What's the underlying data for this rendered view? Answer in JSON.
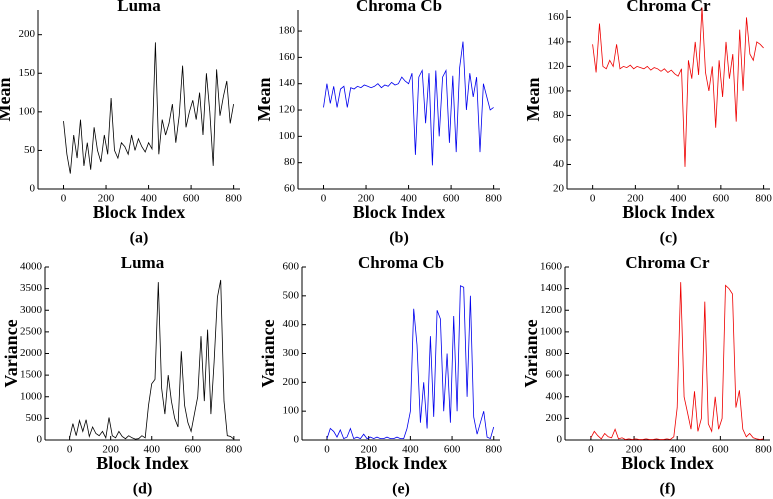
{
  "chart_data": [
    {
      "type": "line",
      "title": "Luma",
      "xlabel": "Block Index",
      "ylabel": "Mean",
      "caption": "(a)",
      "color": "#000000",
      "x": [
        0,
        16,
        32,
        48,
        64,
        80,
        96,
        112,
        128,
        144,
        160,
        176,
        192,
        208,
        224,
        240,
        256,
        272,
        288,
        304,
        320,
        336,
        352,
        368,
        384,
        400,
        416,
        432,
        448,
        464,
        480,
        496,
        512,
        528,
        544,
        560,
        576,
        592,
        608,
        624,
        640,
        656,
        672,
        688,
        704,
        720,
        736,
        752,
        768,
        784,
        800
      ],
      "values": [
        88,
        45,
        20,
        70,
        40,
        90,
        30,
        60,
        25,
        80,
        50,
        35,
        70,
        45,
        118,
        50,
        40,
        60,
        55,
        45,
        70,
        50,
        65,
        55,
        48,
        60,
        52,
        190,
        45,
        90,
        70,
        85,
        110,
        60,
        95,
        160,
        80,
        100,
        115,
        90,
        125,
        70,
        150,
        100,
        30,
        155,
        95,
        120,
        140,
        85,
        110
      ],
      "xlim": [
        -120,
        830
      ],
      "xticks": [
        0,
        200,
        400,
        600,
        800
      ],
      "ylim": [
        0,
        232
      ],
      "yticks": [
        0,
        50,
        100,
        150,
        200
      ]
    },
    {
      "type": "line",
      "title": "Chroma Cb",
      "xlabel": "Block Index",
      "ylabel": "Mean",
      "caption": "(b)",
      "color": "#0000ee",
      "x": [
        0,
        16,
        32,
        48,
        64,
        80,
        96,
        112,
        128,
        144,
        160,
        176,
        192,
        208,
        224,
        240,
        256,
        272,
        288,
        304,
        320,
        336,
        352,
        368,
        384,
        400,
        416,
        432,
        448,
        464,
        480,
        496,
        512,
        528,
        544,
        560,
        576,
        592,
        608,
        624,
        640,
        656,
        672,
        688,
        704,
        720,
        736,
        752,
        768,
        784,
        800
      ],
      "values": [
        122,
        140,
        125,
        138,
        122,
        136,
        138,
        122,
        137,
        136,
        138,
        137,
        139,
        138,
        137,
        138,
        140,
        137,
        139,
        138,
        141,
        139,
        140,
        145,
        142,
        140,
        148,
        86,
        145,
        150,
        110,
        148,
        78,
        150,
        100,
        145,
        150,
        95,
        146,
        88,
        152,
        172,
        120,
        148,
        130,
        145,
        88,
        140,
        130,
        120,
        122
      ],
      "xlim": [
        -120,
        830
      ],
      "xticks": [
        0,
        200,
        400,
        600,
        800
      ],
      "ylim": [
        60,
        196
      ],
      "yticks": [
        60,
        80,
        100,
        120,
        140,
        160,
        180
      ]
    },
    {
      "type": "line",
      "title": "Chroma Cr",
      "xlabel": "Block Index",
      "ylabel": "Mean",
      "caption": "(c)",
      "color": "#ee0000",
      "x": [
        0,
        16,
        32,
        48,
        64,
        80,
        96,
        112,
        128,
        144,
        160,
        176,
        192,
        208,
        224,
        240,
        256,
        272,
        288,
        304,
        320,
        336,
        352,
        368,
        384,
        400,
        416,
        432,
        448,
        464,
        480,
        496,
        512,
        528,
        544,
        560,
        576,
        592,
        608,
        624,
        640,
        656,
        672,
        688,
        704,
        720,
        736,
        752,
        768,
        784,
        800
      ],
      "values": [
        138,
        115,
        155,
        120,
        118,
        125,
        120,
        138,
        118,
        120,
        119,
        121,
        118,
        120,
        119,
        118,
        120,
        117,
        119,
        118,
        116,
        118,
        115,
        117,
        114,
        112,
        118,
        38,
        125,
        110,
        140,
        113,
        168,
        115,
        100,
        120,
        70,
        125,
        95,
        140,
        110,
        130,
        75,
        150,
        100,
        160,
        130,
        125,
        140,
        138,
        135
      ],
      "xlim": [
        -120,
        830
      ],
      "xticks": [
        0,
        200,
        400,
        600,
        800
      ],
      "ylim": [
        20,
        166
      ],
      "yticks": [
        20,
        40,
        60,
        80,
        100,
        120,
        140,
        160
      ]
    },
    {
      "type": "line",
      "title": "Luma",
      "xlabel": "Block Index",
      "ylabel": "Variance",
      "caption": "(d)",
      "color": "#000000",
      "x": [
        0,
        16,
        32,
        48,
        64,
        80,
        96,
        112,
        128,
        144,
        160,
        176,
        192,
        208,
        224,
        240,
        256,
        272,
        288,
        304,
        320,
        336,
        352,
        368,
        384,
        400,
        416,
        432,
        448,
        464,
        480,
        496,
        512,
        528,
        544,
        560,
        576,
        592,
        608,
        624,
        640,
        656,
        672,
        688,
        704,
        720,
        736,
        752,
        768,
        784,
        800
      ],
      "values": [
        50,
        380,
        100,
        450,
        200,
        470,
        80,
        300,
        150,
        100,
        200,
        50,
        520,
        100,
        50,
        200,
        80,
        30,
        100,
        50,
        20,
        30,
        100,
        50,
        800,
        1300,
        1400,
        3650,
        1200,
        600,
        1500,
        900,
        500,
        300,
        2050,
        800,
        400,
        200,
        600,
        1000,
        2400,
        900,
        2550,
        600,
        1800,
        3300,
        3700,
        900,
        100,
        80,
        20
      ],
      "xlim": [
        -120,
        830
      ],
      "xticks": [
        0,
        200,
        400,
        600,
        800
      ],
      "ylim": [
        0,
        4000
      ],
      "yticks": [
        0,
        500,
        1000,
        1500,
        2000,
        2500,
        3000,
        3500,
        4000
      ]
    },
    {
      "type": "line",
      "title": "Chroma Cb",
      "xlabel": "Block Index",
      "ylabel": "Variance",
      "caption": "(e)",
      "color": "#0000ee",
      "x": [
        0,
        16,
        32,
        48,
        64,
        80,
        96,
        112,
        128,
        144,
        160,
        176,
        192,
        208,
        224,
        240,
        256,
        272,
        288,
        304,
        320,
        336,
        352,
        368,
        384,
        400,
        416,
        432,
        448,
        464,
        480,
        496,
        512,
        528,
        544,
        560,
        576,
        592,
        608,
        624,
        640,
        656,
        672,
        688,
        704,
        720,
        736,
        752,
        768,
        784,
        800
      ],
      "values": [
        5,
        40,
        30,
        10,
        35,
        5,
        10,
        40,
        5,
        10,
        5,
        20,
        5,
        10,
        5,
        10,
        5,
        5,
        10,
        5,
        5,
        10,
        5,
        5,
        40,
        100,
        455,
        330,
        60,
        200,
        40,
        360,
        80,
        450,
        420,
        100,
        300,
        60,
        430,
        100,
        535,
        530,
        150,
        500,
        80,
        20,
        60,
        100,
        10,
        5,
        45
      ],
      "xlim": [
        -120,
        830
      ],
      "xticks": [
        0,
        200,
        400,
        600,
        800
      ],
      "ylim": [
        0,
        600
      ],
      "yticks": [
        0,
        100,
        200,
        300,
        400,
        500,
        600
      ]
    },
    {
      "type": "line",
      "title": "Chroma Cr",
      "xlabel": "Block Index",
      "ylabel": "Variance",
      "caption": "(f)",
      "color": "#ee0000",
      "x": [
        0,
        16,
        32,
        48,
        64,
        80,
        96,
        112,
        128,
        144,
        160,
        176,
        192,
        208,
        224,
        240,
        256,
        272,
        288,
        304,
        320,
        336,
        352,
        368,
        384,
        400,
        416,
        432,
        448,
        464,
        480,
        496,
        512,
        528,
        544,
        560,
        576,
        592,
        608,
        624,
        640,
        656,
        672,
        688,
        704,
        720,
        736,
        752,
        768,
        784,
        800
      ],
      "values": [
        20,
        80,
        40,
        10,
        60,
        30,
        20,
        100,
        10,
        20,
        5,
        10,
        5,
        10,
        5,
        5,
        10,
        5,
        5,
        10,
        5,
        5,
        10,
        5,
        30,
        300,
        1460,
        400,
        250,
        100,
        450,
        80,
        200,
        1280,
        150,
        80,
        400,
        100,
        200,
        1430,
        1400,
        1350,
        300,
        460,
        100,
        30,
        60,
        20,
        10,
        5,
        10
      ],
      "xlim": [
        -120,
        830
      ],
      "xticks": [
        0,
        200,
        400,
        600,
        800
      ],
      "ylim": [
        0,
        1600
      ],
      "yticks": [
        0,
        200,
        400,
        600,
        800,
        1000,
        1200,
        1400,
        1600
      ]
    }
  ]
}
